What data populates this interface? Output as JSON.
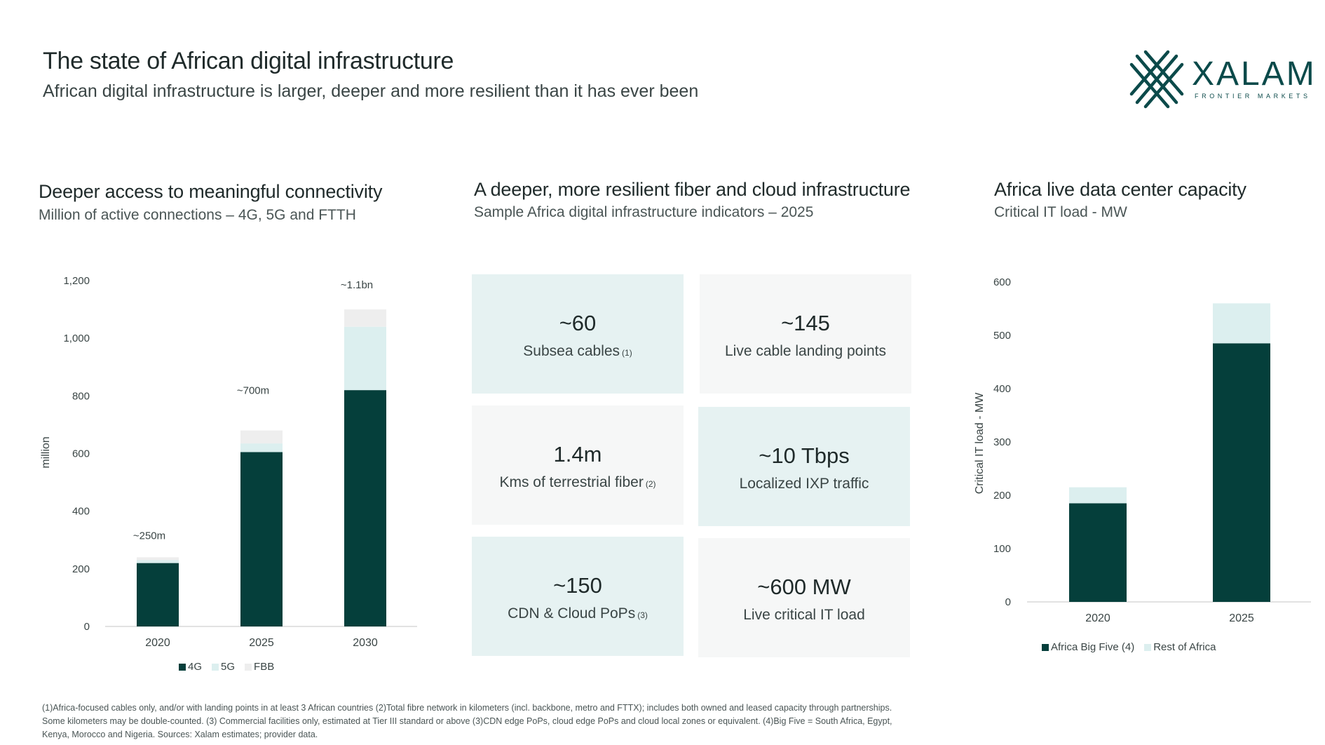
{
  "header": {
    "title": "The state of African digital infrastructure",
    "subtitle": "African digital infrastructure is larger, deeper and more resilient than it has ever been"
  },
  "logo": {
    "word": "XALAM",
    "tagline": "FRONTIER MARKETS",
    "icon": "xalam-x-icon",
    "color": "#0b4a4a"
  },
  "colors": {
    "dark": "#053f3b",
    "light": "#dcefef",
    "lighter": "#eeeeee",
    "tile_teal": "#e6f2f2",
    "tile_grey": "#f6f7f7"
  },
  "panels": {
    "connectivity": {
      "title": "Deeper access to meaningful connectivity",
      "subtitle": "Million of active connections – 4G, 5G and FTTH"
    },
    "fiber": {
      "title": "A deeper, more resilient fiber and cloud infrastructure",
      "subtitle": "Sample Africa digital infrastructure indicators – 2025",
      "tiles": [
        {
          "value": "~60",
          "label": "Subsea cables",
          "note": "(1)"
        },
        {
          "value": "~145",
          "label": "Live cable landing points",
          "note": ""
        },
        {
          "value": "1.4m",
          "label": "Kms of terrestrial fiber",
          "note": "(2)"
        },
        {
          "value": "~10 Tbps",
          "label": "Localized IXP traffic",
          "note": ""
        },
        {
          "value": "~150",
          "label": "CDN & Cloud PoPs",
          "note": "(3)"
        },
        {
          "value": "~600 MW",
          "label": "Live critical IT load",
          "note": ""
        }
      ]
    },
    "datacenter": {
      "title": "Africa live data center capacity",
      "subtitle": "Critical IT load - MW"
    }
  },
  "chart_data": [
    {
      "type": "bar",
      "stacked": true,
      "categories": [
        "2020",
        "2025",
        "2030"
      ],
      "series": [
        {
          "name": "4G",
          "values": [
            220,
            605,
            820
          ],
          "color": "#053f3b"
        },
        {
          "name": "5G",
          "values": [
            10,
            30,
            220
          ],
          "color": "#dcefef"
        },
        {
          "name": "FBB",
          "values": [
            10,
            45,
            60
          ],
          "color": "#eeeeee"
        }
      ],
      "annotations": [
        "~250m",
        "~700m",
        "~1.1bn"
      ],
      "ylabel": "million",
      "ylim": [
        0,
        1200
      ],
      "yticks": [
        0,
        200,
        400,
        600,
        800,
        1000,
        1200
      ],
      "ytick_labels": [
        "0",
        "200",
        "400",
        "600",
        "800",
        "1,000",
        "1,200"
      ],
      "grid": false,
      "legend": "bottom"
    },
    {
      "type": "bar",
      "stacked": true,
      "categories": [
        "2020",
        "2025"
      ],
      "series": [
        {
          "name": "Africa Big Five (4)",
          "values": [
            185,
            485
          ],
          "color": "#053f3b"
        },
        {
          "name": "Rest of Africa",
          "values": [
            30,
            75
          ],
          "color": "#dcefef"
        }
      ],
      "ylabel": "Critical IT load - MW",
      "ylim": [
        0,
        600
      ],
      "yticks": [
        0,
        100,
        200,
        300,
        400,
        500,
        600
      ],
      "ytick_labels": [
        "0",
        "100",
        "200",
        "300",
        "400",
        "500",
        "600"
      ],
      "grid": false,
      "legend": "bottom"
    }
  ],
  "footnote": {
    "lines": [
      "(1)Africa-focused cables only, and/or with landing points in at least 3 African countries (2)Total fibre network in kilometers (incl. backbone, metro and FTTX); includes both owned and leased capacity through partnerships.",
      "Some kilometers may be double-counted. (3) Commercial facilities only, estimated at Tier III standard or above (3)CDN edge PoPs, cloud edge PoPs and cloud local zones or equivalent. (4)Big Five = South Africa, Egypt,",
      "Kenya, Morocco and Nigeria. Sources: Xalam estimates; provider data."
    ]
  }
}
